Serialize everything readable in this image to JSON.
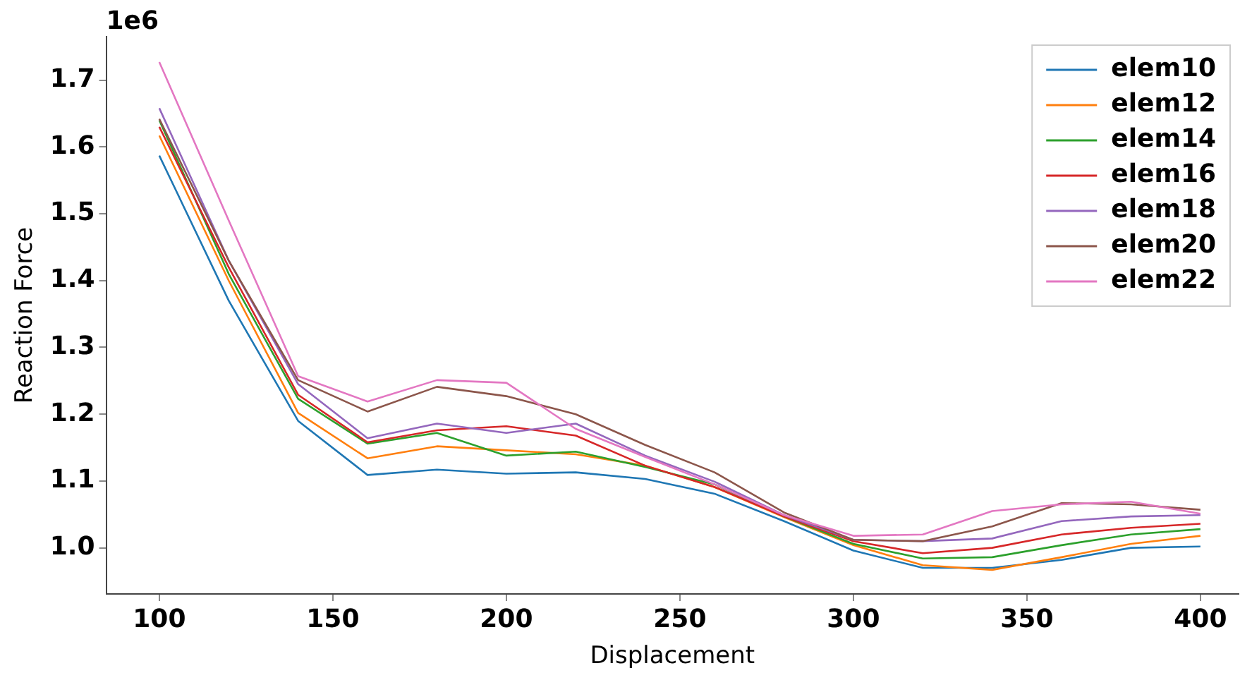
{
  "chart_data": {
    "type": "line",
    "xlabel": "Displacement",
    "ylabel": "Reaction Force",
    "annotations": [
      "1e6"
    ],
    "x": [
      100,
      120,
      140,
      160,
      180,
      200,
      220,
      240,
      260,
      280,
      300,
      320,
      340,
      360,
      380,
      400
    ],
    "xlim": [
      84.7,
      411
    ],
    "xticks": [
      100,
      150,
      200,
      250,
      300,
      350,
      400
    ],
    "ylim": [
      0.931,
      1.765
    ],
    "yticks": [
      {
        "value": 1.0,
        "label": "1.0"
      },
      1.1,
      1.2,
      1.3,
      1.4,
      1.5,
      1.6,
      1.7
    ],
    "grid": false,
    "legend": "top right",
    "marker": "none",
    "line_style": "solid",
    "series": [
      {
        "name": "elem10",
        "color": "#1f77b4",
        "values": [
          1.587,
          1.37,
          1.19,
          1.109,
          1.117,
          1.111,
          1.113,
          1.103,
          1.081,
          1.04,
          0.996,
          0.97,
          0.97,
          0.982,
          1.0,
          1.002
        ]
      },
      {
        "name": "elem12",
        "color": "#ff7f0e",
        "values": [
          1.617,
          1.4,
          1.202,
          1.134,
          1.152,
          1.146,
          1.14,
          1.123,
          1.091,
          1.046,
          1.004,
          0.974,
          0.967,
          0.986,
          1.006,
          1.018
        ]
      },
      {
        "name": "elem14",
        "color": "#2ca02c",
        "values": [
          1.64,
          1.41,
          1.223,
          1.156,
          1.172,
          1.138,
          1.144,
          1.121,
          1.095,
          1.047,
          1.006,
          0.984,
          0.986,
          1.004,
          1.02,
          1.028
        ]
      },
      {
        "name": "elem16",
        "color": "#d62728",
        "values": [
          1.63,
          1.42,
          1.229,
          1.158,
          1.176,
          1.182,
          1.168,
          1.123,
          1.091,
          1.047,
          1.01,
          0.992,
          1.0,
          1.02,
          1.03,
          1.036
        ]
      },
      {
        "name": "elem18",
        "color": "#9467bd",
        "values": [
          1.658,
          1.43,
          1.245,
          1.164,
          1.186,
          1.172,
          1.186,
          1.138,
          1.099,
          1.049,
          1.012,
          1.01,
          1.014,
          1.04,
          1.047,
          1.049
        ]
      },
      {
        "name": "elem20",
        "color": "#8c564b",
        "values": [
          1.642,
          1.43,
          1.251,
          1.204,
          1.241,
          1.227,
          1.2,
          1.154,
          1.113,
          1.053,
          1.012,
          1.01,
          1.032,
          1.067,
          1.065,
          1.057
        ]
      },
      {
        "name": "elem22",
        "color": "#e377c2",
        "values": [
          1.727,
          1.49,
          1.257,
          1.219,
          1.251,
          1.247,
          1.178,
          1.136,
          1.095,
          1.049,
          1.018,
          1.02,
          1.055,
          1.065,
          1.069,
          1.051
        ]
      }
    ]
  }
}
